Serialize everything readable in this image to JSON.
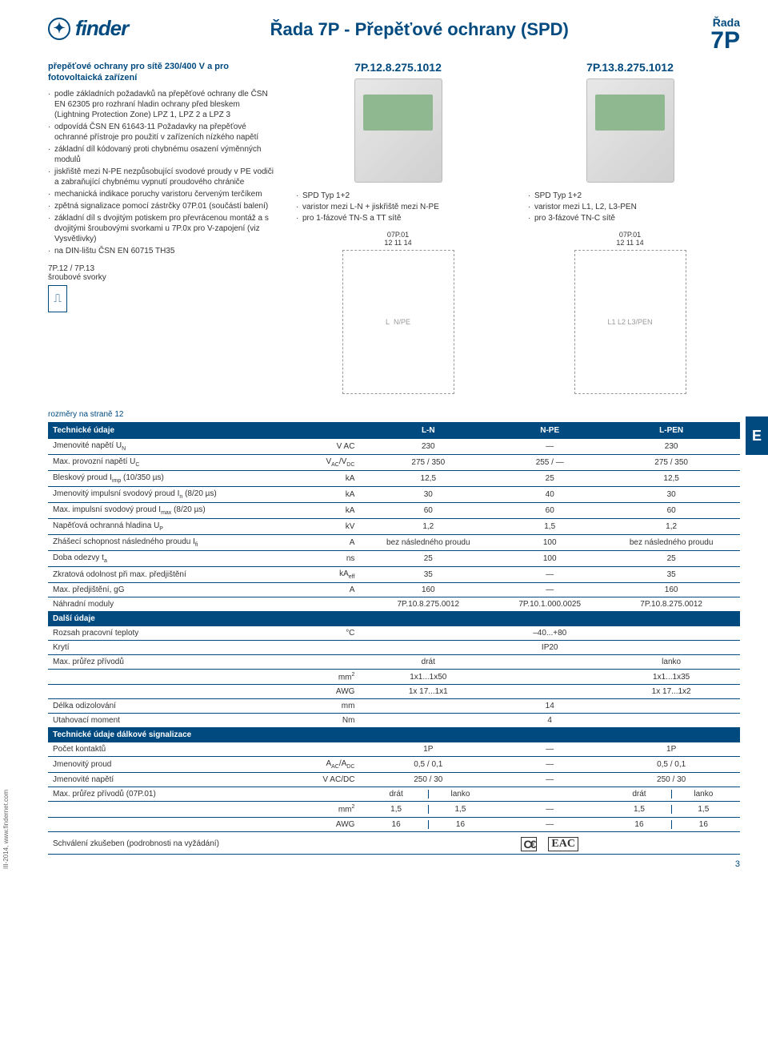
{
  "header": {
    "logo_text": "finder",
    "title_center": "Řada 7P - Přepěťové ochrany (SPD)",
    "title_r": "Řada",
    "title_p": "7P"
  },
  "left": {
    "title": "přepěťové ochrany pro sítě 230/400 V a pro fotovoltaická zařízení",
    "items": [
      "podle základních požadavků na přepěťové ochrany dle ČSN EN 62305 pro rozhraní hladin ochrany před bleskem (Lightning Protection Zone) LPZ 1, LPZ 2 a LPZ 3",
      "odpovídá ČSN EN 61643-11 Požadavky na přepěťové ochranné přístroje pro použití v zařízeních nízkého napětí",
      "základní díl kódovaný proti chybnému osazení výměnných modulů",
      "jiskřiště mezi N-PE nezpůsobující svodové proudy v PE vodiči a zabraňující chybnému vypnutí proudového chrániče",
      "mechanická indikace poruchy varistoru červeným terčíkem",
      "zpětná signalizace pomocí zástrčky 07P.01 (součástí balení)",
      "základní díl s dvojitým potiskem pro převrácenou montáž a s dvojitými šroubovými svorkami u 7P.0x pro V-zapojení (viz Vysvětlivky)",
      "na DIN-lištu ČSN EN 60715 TH35"
    ],
    "screw_label": "7P.12 / 7P.13",
    "screw_sub": "šroubové svorky"
  },
  "prod1": {
    "code": "7P.12.8.275.1012",
    "items": [
      "SPD Typ 1+2",
      "varistor mezi L-N + jiskřiště mezi N-PE",
      "pro 1-fázové TN-S a TT sítě"
    ],
    "diag_top": "07P.01",
    "diag_sub": "12 11 14",
    "diag_l": "L",
    "diag_n": "N",
    "diag_pe": "PE"
  },
  "prod2": {
    "code": "7P.13.8.275.1012",
    "items": [
      "SPD Typ 1+2",
      "varistor mezi L1, L2, L3-PEN",
      "pro 3-fázové TN-C sítě"
    ],
    "diag_top": "07P.01",
    "diag_sub": "12 11 14",
    "diag_l1": "L1",
    "diag_l2": "L2",
    "diag_l3": "L3",
    "diag_pen": "PEN"
  },
  "side_e": "E",
  "dims_note": "rozměry na straně 12",
  "table": {
    "head": {
      "c1": "Technické údaje",
      "c2": "L-N",
      "c3": "N-PE",
      "c4": "L-PEN"
    },
    "rows": [
      {
        "label": "Jmenovité napětí U",
        "sub": "N",
        "unit": "V AC",
        "v1": "230",
        "v2": "—",
        "v3": "230"
      },
      {
        "label": "Max. provozní napětí U",
        "sub": "C",
        "unit": "V_AC/V_DC",
        "v1": "275 / 350",
        "v2": "255 / —",
        "v3": "275 / 350"
      },
      {
        "label": "Bleskový proud I",
        "sub": "imp",
        "suffix": " (10/350 µs)",
        "unit": "kA",
        "v1": "12,5",
        "v2": "25",
        "v3": "12,5"
      },
      {
        "label": "Jmenovitý impulsní svodový proud I",
        "sub": "n",
        "suffix": " (8/20 µs)",
        "unit": "kA",
        "v1": "30",
        "v2": "40",
        "v3": "30"
      },
      {
        "label": "Max. impulsní svodový proud I",
        "sub": "max",
        "suffix": " (8/20 µs)",
        "unit": "kA",
        "v1": "60",
        "v2": "60",
        "v3": "60"
      },
      {
        "label": "Napěťová ochranná hladina U",
        "sub": "P",
        "unit": "kV",
        "v1": "1,2",
        "v2": "1,5",
        "v3": "1,2"
      },
      {
        "label": "Zhášecí schopnost následného proudu I",
        "sub": "fi",
        "unit": "A",
        "v1": "bez následného proudu",
        "v2": "100",
        "v3": "bez následného proudu"
      },
      {
        "label": "Doba odezvy t",
        "sub": "a",
        "unit": "ns",
        "v1": "25",
        "v2": "100",
        "v3": "25"
      },
      {
        "label": "Zkratová odolnost při max. předjištění",
        "unit": "kA_eff",
        "v1": "35",
        "v2": "—",
        "v3": "35"
      },
      {
        "label": "Max. předjištění, gG",
        "unit": "A",
        "v1": "160",
        "v2": "—",
        "v3": "160"
      },
      {
        "label": "Náhradní moduly",
        "unit": "",
        "v1": "7P.10.8.275.0012",
        "v2": "7P.10.1.000.0025",
        "v3": "7P.10.8.275.0012"
      }
    ],
    "sec2": "Další údaje",
    "rows2": [
      {
        "label": "Rozsah pracovní teploty",
        "unit": "°C",
        "merge": "–40...+80"
      },
      {
        "label": "Krytí",
        "unit": "",
        "merge": "IP20"
      }
    ],
    "wire": {
      "label": "Max. průřez přívodů",
      "drat": "drát",
      "lanko": "lanko",
      "r1_unit": "mm²",
      "r1_v1": "1x1...1x50",
      "r1_v3": "1x1...1x35",
      "r2_unit": "AWG",
      "r2_v1": "1x 17...1x1",
      "r2_v3": "1x 17...1x2"
    },
    "rows3": [
      {
        "label": "Délka odizolování",
        "unit": "mm",
        "merge": "14"
      },
      {
        "label": "Utahovací moment",
        "unit": "Nm",
        "merge": "4"
      }
    ],
    "sec3": "Technické údaje dálkové signalizace",
    "rows4": [
      {
        "label": "Počet kontaktů",
        "unit": "",
        "v1": "1P",
        "v2": "—",
        "v3": "1P"
      },
      {
        "label": "Jmenovitý proud",
        "unit": "A_AC/A_DC",
        "v1": "0,5 / 0,1",
        "v2": "—",
        "v3": "0,5 / 0,1"
      },
      {
        "label": "Jmenovité napětí",
        "unit": "V AC/DC",
        "v1": "250 / 30",
        "v2": "—",
        "v3": "250 / 30"
      }
    ],
    "wire2": {
      "label": "Max. průřez přívodů (07P.01)",
      "drat": "drát",
      "lanko": "lanko",
      "r1_unit": "mm²",
      "a": "1,5",
      "b": "1,5",
      "mid": "—",
      "c": "1,5",
      "d": "1,5",
      "r2_unit": "AWG",
      "a2": "16",
      "b2": "16",
      "mid2": "—",
      "c2": "16",
      "d2": "16"
    },
    "approval": "Schválení zkušeben (podrobnosti na vyžádání)"
  },
  "footer": {
    "left": "III-2014, www.findernet.com",
    "page": "3"
  }
}
